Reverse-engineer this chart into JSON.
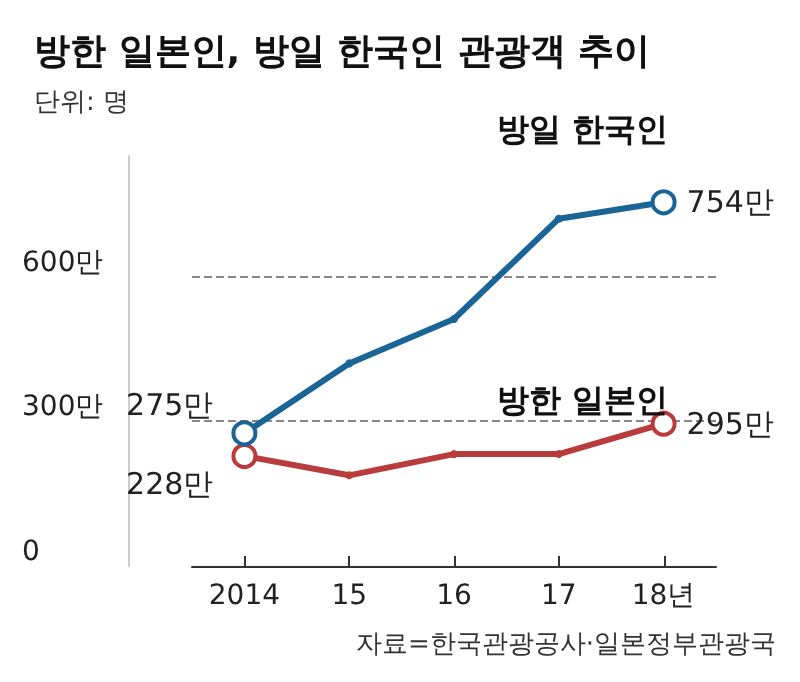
{
  "chart_data": {
    "type": "line",
    "title": "방한 일본인, 방일 한국인 관광객 추이",
    "subtitle": "단위: 명",
    "annotations": [
      "자료=한국관광공사·일본정부관광국"
    ],
    "categories": [
      "2014",
      "15",
      "16",
      "17",
      "18년"
    ],
    "series": [
      {
        "name": "방일 한국인",
        "color": "#1a6496",
        "values": [
          275,
          420,
          512,
          720,
          754
        ],
        "value_labels": [
          "275만",
          null,
          null,
          null,
          "754만"
        ]
      },
      {
        "name": "방한 일본인",
        "color": "#b83c3c",
        "values": [
          228,
          188,
          232,
          232,
          295
        ],
        "value_labels": [
          "228만",
          null,
          null,
          null,
          "295만"
        ]
      }
    ],
    "ylim": [
      0,
      850
    ],
    "yticks": [
      0,
      {
        "value": 300,
        "label": "300만"
      },
      {
        "value": 600,
        "label": "600만"
      }
    ],
    "grid": "y",
    "legend": false,
    "marker": "circle",
    "line_style": "solid"
  }
}
